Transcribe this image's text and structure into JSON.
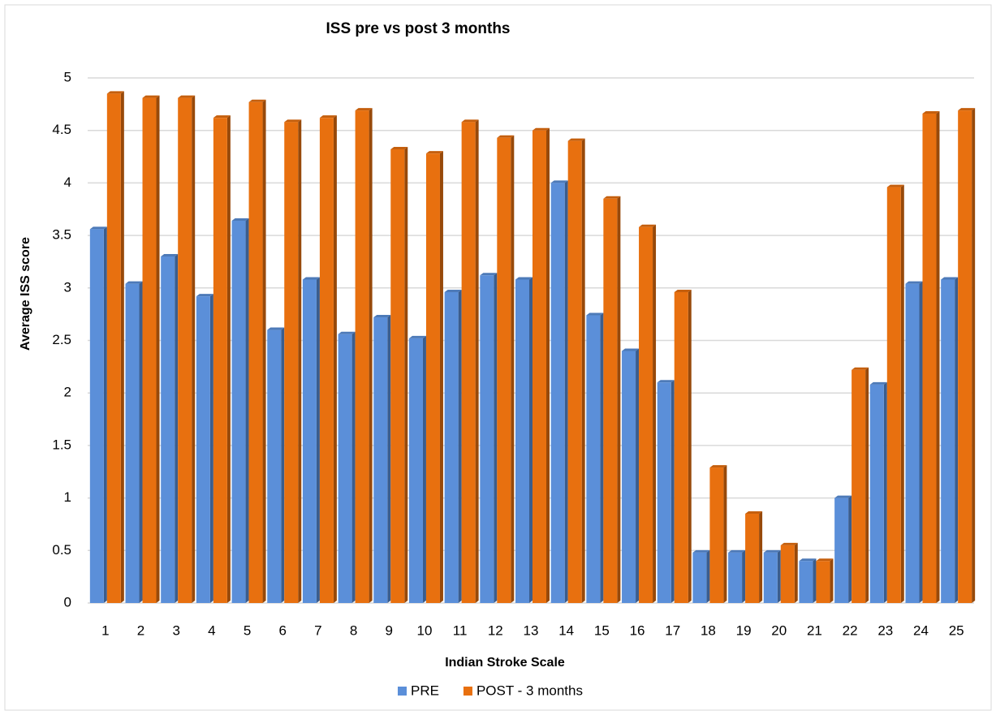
{
  "chart_data": {
    "type": "bar",
    "title": "ISS pre  vs post 3 months",
    "x_label": "Indian Stroke Scale",
    "y_label": "Average ISS score",
    "categories": [
      "1",
      "2",
      "3",
      "4",
      "5",
      "6",
      "7",
      "8",
      "9",
      "10",
      "11",
      "12",
      "13",
      "14",
      "15",
      "16",
      "17",
      "18",
      "19",
      "20",
      "21",
      "22",
      "23",
      "24",
      "25"
    ],
    "series": [
      {
        "name": "PRE",
        "color": "#5b8fd9",
        "values": [
          3.56,
          3.04,
          3.3,
          2.92,
          3.64,
          2.6,
          3.08,
          2.56,
          2.72,
          2.52,
          2.96,
          3.12,
          3.08,
          4.0,
          2.74,
          2.4,
          2.1,
          0.48,
          0.48,
          0.48,
          0.4,
          1.0,
          2.08,
          3.04,
          3.08
        ]
      },
      {
        "name": "POST - 3 months",
        "color": "#e8700f",
        "values": [
          4.85,
          4.81,
          4.81,
          4.62,
          4.77,
          4.58,
          4.62,
          4.69,
          4.32,
          4.28,
          4.58,
          4.43,
          4.5,
          4.4,
          3.85,
          3.58,
          2.96,
          1.29,
          0.85,
          0.55,
          0.4,
          2.22,
          3.96,
          4.66,
          4.69
        ]
      }
    ],
    "ylim": [
      0,
      5
    ],
    "yticks": [
      0,
      0.5,
      1,
      1.5,
      2,
      2.5,
      3,
      3.5,
      4,
      4.5,
      5
    ],
    "grid": true,
    "legend": "bottom"
  }
}
